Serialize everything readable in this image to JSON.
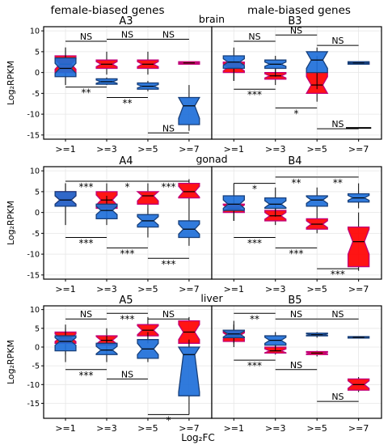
{
  "header": {
    "left": "female-biased genes",
    "right": "male-biased genes"
  },
  "colors": {
    "female": "#ff0000",
    "male": "#1e6fd9",
    "female_border": "#c0007a",
    "male_border": "#173f7a"
  },
  "axis": {
    "ylabel": "Log₂RPKM",
    "xlabel": "Log₂FC",
    "categories": [
      ">=1",
      ">=3",
      ">=5",
      ">=7"
    ],
    "yticks": [
      10,
      5,
      0,
      -5,
      -10,
      -15
    ]
  },
  "chart_data": [
    {
      "type": "boxplot",
      "id": "A3",
      "panel": "A3",
      "tissue": "brain",
      "ylim": [
        -16,
        11
      ],
      "female": [
        {
          "min": -3,
          "q1": 0,
          "med": 2,
          "q3": 4,
          "max": 6,
          "notch": 1.2
        },
        {
          "min": -0.5,
          "q1": 1,
          "med": 2,
          "q3": 3,
          "max": 5,
          "notch": 0.6
        },
        {
          "min": -0.5,
          "q1": 1,
          "med": 2,
          "q3": 3,
          "max": 5,
          "notch": 0.6
        },
        {
          "min": 2,
          "q1": 2,
          "med": 2.3,
          "q3": 2.6,
          "max": 2.6,
          "notch": 0.1
        }
      ],
      "male": [
        {
          "min": -3,
          "q1": -1,
          "med": 1,
          "q3": 3.5,
          "max": 6,
          "notch": 1.2
        },
        {
          "min": -3,
          "q1": -2.8,
          "med": -2.2,
          "q3": -1.5,
          "max": -1.2,
          "notch": 0.4
        },
        {
          "min": -4.5,
          "q1": -4,
          "med": -3.3,
          "q3": -2.5,
          "max": -2,
          "notch": 0.4
        },
        {
          "min": -14,
          "q1": -12.5,
          "med": -8,
          "q3": -6,
          "max": -3,
          "notch": 3
        }
      ],
      "sig": [
        {
          "from": 0,
          "to": 1,
          "y": 7.5,
          "label": "NS"
        },
        {
          "from": 1,
          "to": 2,
          "y": 8,
          "label": "NS"
        },
        {
          "from": 2,
          "to": 3,
          "y": 8,
          "label": "NS"
        },
        {
          "from": 0,
          "to": 1,
          "y": -3.5,
          "label": "**"
        },
        {
          "from": 1,
          "to": 2,
          "y": -6,
          "label": "**"
        },
        {
          "from": 2,
          "to": 3,
          "y": -14.5,
          "label": "NS"
        }
      ]
    },
    {
      "type": "boxplot",
      "id": "B3",
      "panel": "B3",
      "ylim": [
        -16,
        11
      ],
      "female": [
        {
          "min": -2,
          "q1": 0,
          "med": 1.2,
          "q3": 2.5,
          "max": 4,
          "notch": 0.8
        },
        {
          "min": -3,
          "q1": -1.6,
          "med": -0.8,
          "q3": 0,
          "max": 1,
          "notch": 0.5
        },
        {
          "min": -7,
          "q1": -5,
          "med": -3,
          "q3": 0,
          "max": 4,
          "notch": 2
        },
        {
          "min": 2,
          "q1": 2,
          "med": 2.2,
          "q3": 2.4,
          "max": 2.4,
          "notch": 0.1
        }
      ],
      "male": [
        {
          "min": -2,
          "q1": 1,
          "med": 2.5,
          "q3": 4,
          "max": 6,
          "notch": 0.8
        },
        {
          "min": -1,
          "q1": 1,
          "med": 2,
          "q3": 3,
          "max": 4,
          "notch": 0.5
        },
        {
          "min": -4,
          "q1": 0,
          "med": 3,
          "q3": 5,
          "max": 6,
          "notch": 2
        },
        {
          "min": 2,
          "q1": 2,
          "med": 2.3,
          "q3": 2.6,
          "max": 2.6,
          "notch": 0.1
        }
      ],
      "sig": [
        {
          "from": 0,
          "to": 1,
          "y": 7.5,
          "label": "NS"
        },
        {
          "from": 1,
          "to": 2,
          "y": 9,
          "label": "NS"
        },
        {
          "from": 2,
          "to": 3,
          "y": 6.5,
          "label": "NS"
        },
        {
          "from": 0,
          "to": 1,
          "y": -4,
          "label": "***"
        },
        {
          "from": 1,
          "to": 2,
          "y": -8.5,
          "label": "*"
        },
        {
          "from": 2,
          "to": 3,
          "y": -13.5,
          "label": "NS"
        }
      ],
      "flat_segment": {
        "cat": 3,
        "y": -13.3
      }
    },
    {
      "type": "boxplot",
      "id": "A4",
      "panel": "A4",
      "tissue": "gonad",
      "ylim": [
        -16,
        11
      ],
      "female": [
        {
          "min": -3,
          "q1": 1.5,
          "med": 3,
          "q3": 5,
          "max": 7,
          "notch": 1
        },
        {
          "min": -2,
          "q1": 1,
          "med": 3,
          "q3": 5,
          "max": 7,
          "notch": 1.2
        },
        {
          "min": 0,
          "q1": 2,
          "med": 4,
          "q3": 5,
          "max": 7,
          "notch": 1.2
        },
        {
          "min": 0,
          "q1": 3.5,
          "med": 5,
          "q3": 7,
          "max": 8,
          "notch": 1.3
        }
      ],
      "male": [
        {
          "min": -3,
          "q1": 1.5,
          "med": 3,
          "q3": 5,
          "max": 7,
          "notch": 1
        },
        {
          "min": -3,
          "q1": -1.5,
          "med": 0.5,
          "q3": 2,
          "max": 4,
          "notch": 1
        },
        {
          "min": -6,
          "q1": -3.5,
          "med": -2,
          "q3": -0.5,
          "max": 1,
          "notch": 1
        },
        {
          "min": -8,
          "q1": -6,
          "med": -4,
          "q3": -2,
          "max": 0,
          "notch": 1.2
        }
      ],
      "sig": [
        {
          "from": 0,
          "to": 1,
          "y": 7.5,
          "label": "***"
        },
        {
          "from": 1,
          "to": 2,
          "y": 7.5,
          "label": "*"
        },
        {
          "from": 2,
          "to": 3,
          "y": 7.5,
          "label": "***"
        },
        {
          "from": 0,
          "to": 1,
          "y": -6,
          "label": "***"
        },
        {
          "from": 1,
          "to": 2,
          "y": -8.5,
          "label": "***"
        },
        {
          "from": 2,
          "to": 3,
          "y": -11,
          "label": "***"
        }
      ]
    },
    {
      "type": "boxplot",
      "id": "B4",
      "panel": "B4",
      "ylim": [
        -16,
        11
      ],
      "female": [
        {
          "min": -2,
          "q1": 0,
          "med": 1,
          "q3": 2,
          "max": 4,
          "notch": 0.8
        },
        {
          "min": -3,
          "q1": -2,
          "med": -0.8,
          "q3": 0.5,
          "max": 2,
          "notch": 0.8
        },
        {
          "min": -5,
          "q1": -4,
          "med": -2.8,
          "q3": -1.5,
          "max": 0,
          "notch": 0.8
        },
        {
          "min": -14,
          "q1": -13,
          "med": -7,
          "q3": -3.5,
          "max": 0,
          "notch": 3
        }
      ],
      "male": [
        {
          "min": -2,
          "q1": 0.5,
          "med": 2,
          "q3": 4,
          "max": 7,
          "notch": 1
        },
        {
          "min": -1,
          "q1": 1,
          "med": 2,
          "q3": 3.5,
          "max": 6,
          "notch": 0.8
        },
        {
          "min": 0,
          "q1": 1.5,
          "med": 3,
          "q3": 4,
          "max": 6,
          "notch": 0.8
        },
        {
          "min": 1,
          "q1": 2.5,
          "med": 3.5,
          "q3": 4.5,
          "max": 7,
          "notch": 0.6
        }
      ],
      "sig": [
        {
          "from": 0,
          "to": 1,
          "y": 7,
          "label": "*"
        },
        {
          "from": 1,
          "to": 2,
          "y": 8.5,
          "label": "**"
        },
        {
          "from": 2,
          "to": 3,
          "y": 8.5,
          "label": "**"
        },
        {
          "from": 0,
          "to": 1,
          "y": -6,
          "label": "***"
        },
        {
          "from": 1,
          "to": 2,
          "y": -8.5,
          "label": "***"
        },
        {
          "from": 2,
          "to": 3,
          "y": -13.5,
          "label": "***"
        }
      ]
    },
    {
      "type": "boxplot",
      "id": "A5",
      "panel": "A5",
      "tissue": "liver",
      "ylim": [
        -19,
        11
      ],
      "female": [
        {
          "min": -2,
          "q1": 1,
          "med": 2.5,
          "q3": 4,
          "max": 6,
          "notch": 1
        },
        {
          "min": -3,
          "q1": 0.5,
          "med": 1.8,
          "q3": 3,
          "max": 5,
          "notch": 1
        },
        {
          "min": 1,
          "q1": 3,
          "med": 4.5,
          "q3": 6,
          "max": 8,
          "notch": 1.2
        },
        {
          "min": 0,
          "q1": 1,
          "med": 4,
          "q3": 7,
          "max": 8,
          "notch": 2
        }
      ],
      "male": [
        {
          "min": -4,
          "q1": -1,
          "med": 1.5,
          "q3": 3,
          "max": 5,
          "notch": 1
        },
        {
          "min": -4,
          "q1": -2,
          "med": -0.8,
          "q3": 1,
          "max": 3,
          "notch": 1
        },
        {
          "min": -4,
          "q1": -3,
          "med": -0.5,
          "q3": 2,
          "max": 4,
          "notch": 1.5
        },
        {
          "min": -18,
          "q1": -13,
          "med": -2,
          "q3": 0,
          "max": 2,
          "notch": 10
        }
      ],
      "sig": [
        {
          "from": 0,
          "to": 1,
          "y": 7.5,
          "label": "NS"
        },
        {
          "from": 1,
          "to": 2,
          "y": 9,
          "label": "***"
        },
        {
          "from": 2,
          "to": 3,
          "y": 7.5,
          "label": "NS"
        },
        {
          "from": 0,
          "to": 1,
          "y": -6,
          "label": "***"
        },
        {
          "from": 1,
          "to": 2,
          "y": -8.5,
          "label": "NS"
        },
        {
          "from": 2,
          "to": 3,
          "y": -18,
          "label": "*"
        }
      ]
    },
    {
      "type": "boxplot",
      "id": "B5",
      "panel": "B5",
      "ylim": [
        -19,
        11
      ],
      "female": [
        {
          "min": 0,
          "q1": 1.5,
          "med": 3,
          "q3": 4.5,
          "max": 7,
          "notch": 0.8
        },
        {
          "min": -2,
          "q1": -1.6,
          "med": -1,
          "q3": 0,
          "max": 1,
          "notch": 0.5
        },
        {
          "min": -2.5,
          "q1": -2,
          "med": -1.6,
          "q3": -1.2,
          "max": -1,
          "notch": 0.2
        },
        {
          "min": -12,
          "q1": -11.5,
          "med": -10,
          "q3": -8.5,
          "max": -8,
          "notch": 1
        }
      ],
      "male": [
        {
          "min": 1,
          "q1": 2.5,
          "med": 3.5,
          "q3": 4.5,
          "max": 6,
          "notch": 0.8
        },
        {
          "min": -1,
          "q1": 0.5,
          "med": 1.8,
          "q3": 3,
          "max": 4,
          "notch": 0.8
        },
        {
          "min": 2.5,
          "q1": 3,
          "med": 3.3,
          "q3": 3.7,
          "max": 4,
          "notch": 0.2
        },
        {
          "min": 2.3,
          "q1": 2.4,
          "med": 2.6,
          "q3": 2.8,
          "max": 2.8,
          "notch": 0.1
        }
      ],
      "sig": [
        {
          "from": 0,
          "to": 1,
          "y": 9,
          "label": "**"
        },
        {
          "from": 1,
          "to": 2,
          "y": 7.5,
          "label": "NS"
        },
        {
          "from": 2,
          "to": 3,
          "y": 7.5,
          "label": "NS"
        },
        {
          "from": 0,
          "to": 1,
          "y": -3.5,
          "label": "***"
        },
        {
          "from": 1,
          "to": 2,
          "y": -6,
          "label": "NS"
        },
        {
          "from": 2,
          "to": 3,
          "y": -14.5,
          "label": "NS"
        }
      ]
    }
  ]
}
